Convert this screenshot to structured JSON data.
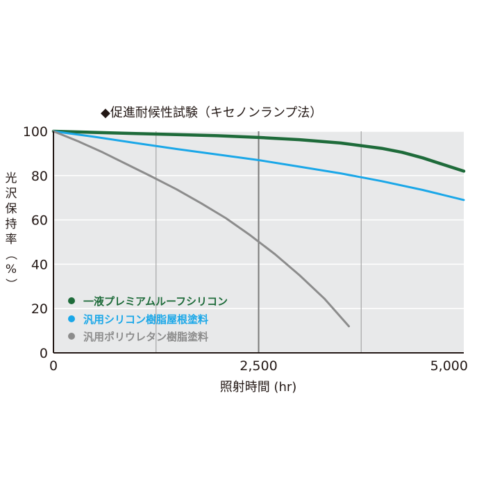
{
  "chart_data": {
    "type": "line",
    "title": "◆促進耐候性試験（キセノンランプ法）",
    "xlabel": "照射時間 (hr)",
    "ylabel": "光沢保持率（%）",
    "xlim": [
      0,
      5000
    ],
    "ylim": [
      0,
      100
    ],
    "x_ticks": [
      0,
      2500,
      5000
    ],
    "x_tick_labels": [
      "0",
      "2,500",
      "5,000"
    ],
    "y_ticks": [
      0,
      20,
      40,
      60,
      80,
      100
    ],
    "y_tick_labels": [
      "0",
      "20",
      "40",
      "60",
      "80",
      "100"
    ],
    "grid": true,
    "legend_position": "bottom-left",
    "series": [
      {
        "name": "一液プレミアムルーフシリコン",
        "color": "#1e6b3a",
        "x": [
          0,
          500,
          1000,
          1500,
          2000,
          2500,
          3000,
          3500,
          4000,
          4250,
          4500,
          4750,
          5000
        ],
        "y": [
          100,
          99.5,
          99,
          98.5,
          98,
          97.2,
          96.2,
          94.7,
          92.3,
          90.5,
          88,
          85,
          82
        ]
      },
      {
        "name": "汎用シリコン樹脂屋根塗料",
        "color": "#1aa7e8",
        "x": [
          0,
          500,
          1000,
          1500,
          2000,
          2500,
          3000,
          3500,
          4000,
          4500,
          5000
        ],
        "y": [
          100,
          97.5,
          94.7,
          92,
          89.5,
          87,
          84,
          81,
          77.5,
          73.5,
          69
        ]
      },
      {
        "name": "汎用ポリウレタン樹脂塗料",
        "color": "#8c8c8c",
        "x": [
          0,
          300,
          600,
          900,
          1200,
          1500,
          1800,
          2100,
          2400,
          2700,
          3000,
          3300,
          3600
        ],
        "y": [
          100,
          95.5,
          90.5,
          85,
          79.5,
          73.8,
          67.5,
          60.8,
          53,
          44.5,
          35,
          24.5,
          12
        ]
      }
    ]
  }
}
